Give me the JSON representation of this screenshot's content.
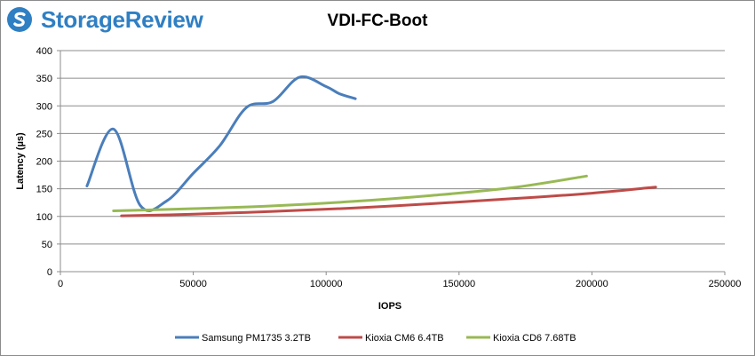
{
  "brand": {
    "name": "StorageReview",
    "color": "#2f7fc3",
    "icon": "storagereview-logo-icon"
  },
  "chart_data": {
    "type": "line",
    "title": "VDI-FC-Boot",
    "xlabel": "IOPS",
    "ylabel": "Latency (µs)",
    "xlim": [
      0,
      250000
    ],
    "ylim": [
      0,
      400
    ],
    "xticks": [
      0,
      50000,
      100000,
      150000,
      200000,
      250000
    ],
    "yticks": [
      0,
      50,
      100,
      150,
      200,
      250,
      300,
      350,
      400
    ],
    "grid": true,
    "legend": "bottom",
    "series": [
      {
        "name": "Samsung PM1735 3.2TB",
        "color": "#4a7ebb",
        "x": [
          10000,
          20000,
          30000,
          40000,
          50000,
          60000,
          70000,
          80000,
          90000,
          100000,
          105000,
          111000
        ],
        "y": [
          155,
          258,
          120,
          128,
          178,
          228,
          297,
          308,
          352,
          335,
          322,
          313
        ]
      },
      {
        "name": "Kioxia CM6 6.4TB",
        "color": "#be4b48",
        "x": [
          23000,
          50000,
          80000,
          110000,
          140000,
          170000,
          200000,
          224000
        ],
        "y": [
          101,
          104,
          109,
          115,
          123,
          132,
          142,
          153
        ]
      },
      {
        "name": "Kioxia CD6 7.68TB",
        "color": "#98b954",
        "x": [
          20000,
          50000,
          80000,
          110000,
          140000,
          170000,
          198000
        ],
        "y": [
          110,
          114,
          119,
          127,
          138,
          152,
          173
        ]
      }
    ]
  }
}
